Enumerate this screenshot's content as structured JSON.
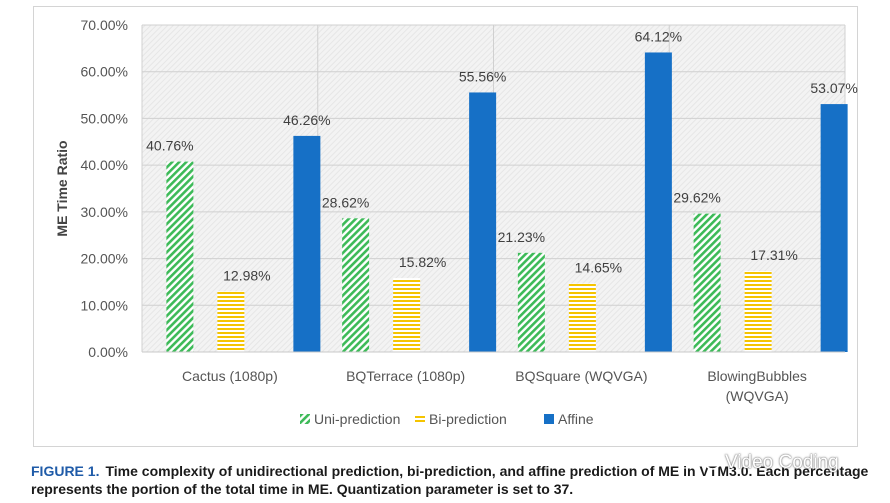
{
  "chart_data": {
    "type": "bar",
    "title": "",
    "xlabel": "",
    "ylabel": "ME Time Ratio",
    "ylim": [
      0,
      70
    ],
    "yticks": [
      "0.00%",
      "10.00%",
      "20.00%",
      "30.00%",
      "40.00%",
      "50.00%",
      "60.00%",
      "70.00%"
    ],
    "grid": true,
    "legend_position": "bottom",
    "categories": [
      [
        "Cactus (1080p)"
      ],
      [
        "BQTerrace (1080p)"
      ],
      [
        "BQSquare (WQVGA)"
      ],
      [
        "BlowingBubbles",
        "(WQVGA)"
      ]
    ],
    "series": [
      {
        "name": "Uni-prediction",
        "pattern": "diagonal-stripes",
        "color": "#3dba58",
        "values": [
          40.76,
          28.62,
          21.23,
          29.62
        ],
        "labels": [
          "40.76%",
          "28.62%",
          "21.23%",
          "29.62%"
        ]
      },
      {
        "name": "Bi-prediction",
        "pattern": "horizontal-stripes",
        "color": "#f5c400",
        "values": [
          12.98,
          15.82,
          14.65,
          17.31
        ],
        "labels": [
          "12.98%",
          "15.82%",
          "14.65%",
          "17.31%"
        ]
      },
      {
        "name": "Affine",
        "pattern": "solid",
        "color": "#1670c6",
        "values": [
          46.26,
          55.56,
          64.12,
          53.07
        ],
        "labels": [
          "46.26%",
          "55.56%",
          "64.12%",
          "53.07%"
        ]
      }
    ]
  },
  "caption": {
    "label": "FIGURE 1.",
    "text": "Time complexity of unidirectional prediction, bi-prediction, and affine prediction of ME in VTM3.0. Each percentage represents the portion of the total time in ME. Quantization parameter is set to 37."
  },
  "watermark": {
    "text": "Video Coding",
    "icon": "wechat-icon"
  }
}
